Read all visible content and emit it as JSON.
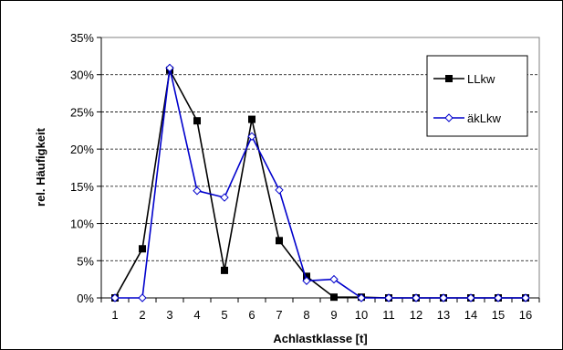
{
  "chart_data": {
    "type": "line",
    "xlabel": "Achlastklasse [t]",
    "ylabel": "rel. Häufigkeit",
    "x": [
      1,
      2,
      3,
      4,
      5,
      6,
      7,
      8,
      9,
      10,
      11,
      12,
      13,
      14,
      15,
      16
    ],
    "ylim": [
      0,
      35
    ],
    "yticks": [
      "0%",
      "5%",
      "10%",
      "15%",
      "20%",
      "25%",
      "30%",
      "35%"
    ],
    "grid": "horizontal-dashed",
    "legend_position": "right",
    "series": [
      {
        "name": "LLkw",
        "color": "#000000",
        "marker": "filled-square",
        "values": [
          0.0,
          6.6,
          30.6,
          23.8,
          3.7,
          24.0,
          7.7,
          2.9,
          0.1,
          0.1,
          0.0,
          0.0,
          0.0,
          0.0,
          0.0,
          0.0
        ]
      },
      {
        "name": "äkLkw",
        "color": "#0000cc",
        "marker": "open-diamond",
        "values": [
          0.0,
          0.0,
          30.9,
          14.4,
          13.5,
          21.7,
          14.5,
          2.3,
          2.5,
          0.0,
          0.0,
          0.0,
          0.0,
          0.0,
          0.0,
          0.0
        ]
      }
    ]
  }
}
